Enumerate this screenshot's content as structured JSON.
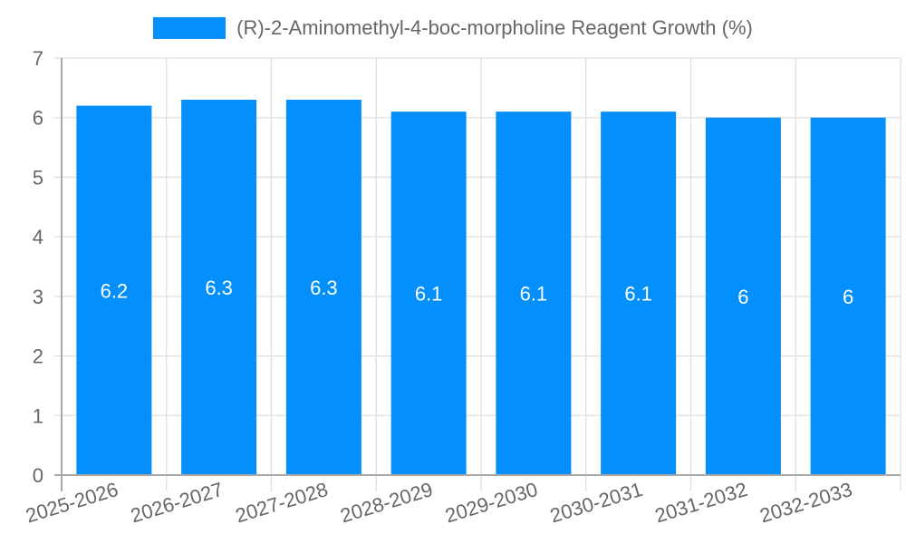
{
  "chart_data": {
    "type": "bar",
    "title": "",
    "legend": [
      "(R)-2-Aminomethyl-4-boc-morpholine Reagent Growth (%)"
    ],
    "legend_position": "top",
    "categories": [
      "2025-2026",
      "2026-2027",
      "2027-2028",
      "2028-2029",
      "2029-2030",
      "2030-2031",
      "2031-2032",
      "2032-2033"
    ],
    "series": [
      {
        "name": "(R)-2-Aminomethyl-4-boc-morpholine Reagent Growth (%)",
        "values": [
          6.2,
          6.3,
          6.3,
          6.1,
          6.1,
          6.1,
          6,
          6
        ],
        "color": "#038ffc"
      }
    ],
    "data_labels": [
      "6.2",
      "6.3",
      "6.3",
      "6.1",
      "6.1",
      "6.1",
      "6",
      "6"
    ],
    "xlabel": "",
    "ylabel": "",
    "ylim": [
      0,
      7
    ],
    "yticks": [
      0,
      1,
      2,
      3,
      4,
      5,
      6,
      7
    ],
    "grid": true
  },
  "colors": {
    "bar": "#038ffc",
    "grid": "#e0e0e0",
    "axis": "#a8a8a8",
    "tick_text": "#666666",
    "data_label": "#ffffff"
  }
}
